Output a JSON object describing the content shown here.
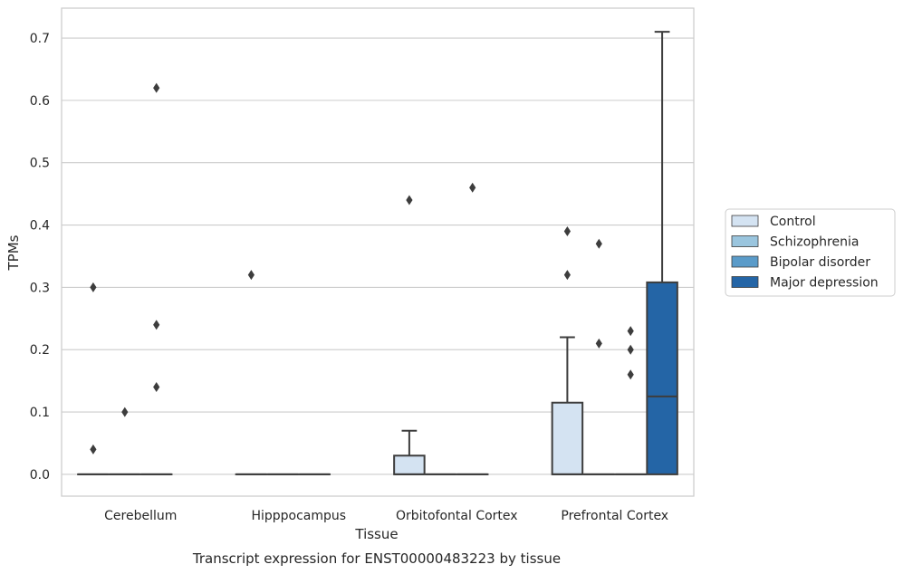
{
  "chart_data": {
    "type": "box",
    "title": "",
    "caption": "Transcript expression for ENST00000483223 by tissue",
    "xlabel": "Tissue",
    "ylabel": "TPMs",
    "ylim": [
      -0.035,
      0.748
    ],
    "yticks": [
      0.0,
      0.1,
      0.2,
      0.3,
      0.4,
      0.5,
      0.6,
      0.7
    ],
    "ytick_labels": [
      "0.0",
      "0.1",
      "0.2",
      "0.3",
      "0.4",
      "0.5",
      "0.6",
      "0.7"
    ],
    "grid": true,
    "legend_position": "right",
    "categories": [
      "Cerebellum",
      "Hipppocampus",
      "Orbitofontal Cortex",
      "Prefrontal Cortex"
    ],
    "series": [
      {
        "name": "Control",
        "color": "#d4e3f2",
        "boxes": [
          {
            "q1": 0,
            "median": 0,
            "q3": 0,
            "whislo": 0,
            "whishi": 0,
            "fliers": [
              0.3,
              0.04
            ]
          },
          {
            "q1": 0,
            "median": 0,
            "q3": 0,
            "whislo": 0,
            "whishi": 0,
            "fliers": [
              0.32
            ]
          },
          {
            "q1": 0,
            "median": 0,
            "q3": 0.03,
            "whislo": 0,
            "whishi": 0.07,
            "fliers": [
              0.44
            ]
          },
          {
            "q1": 0,
            "median": 0,
            "q3": 0.115,
            "whislo": 0,
            "whishi": 0.22,
            "fliers": [
              0.39,
              0.32
            ]
          }
        ]
      },
      {
        "name": "Schizophrenia",
        "color": "#9ac5de",
        "boxes": [
          {
            "q1": 0,
            "median": 0,
            "q3": 0,
            "whislo": 0,
            "whishi": 0,
            "fliers": [
              0.1
            ]
          },
          {
            "q1": 0,
            "median": 0,
            "q3": 0,
            "whislo": 0,
            "whishi": 0,
            "fliers": []
          },
          {
            "q1": 0,
            "median": 0,
            "q3": 0,
            "whislo": 0,
            "whishi": 0,
            "fliers": []
          },
          {
            "q1": 0,
            "median": 0,
            "q3": 0,
            "whislo": 0,
            "whishi": 0,
            "fliers": [
              0.37,
              0.21
            ]
          }
        ]
      },
      {
        "name": "Bipolar disorder",
        "color": "#5a9bc9",
        "boxes": [
          {
            "q1": 0,
            "median": 0,
            "q3": 0,
            "whislo": 0,
            "whishi": 0,
            "fliers": [
              0.62,
              0.24,
              0.14
            ]
          },
          {
            "q1": 0,
            "median": 0,
            "q3": 0,
            "whislo": 0,
            "whishi": 0,
            "fliers": []
          },
          {
            "q1": 0,
            "median": 0,
            "q3": 0,
            "whislo": 0,
            "whishi": 0,
            "fliers": [
              0.46
            ]
          },
          {
            "q1": 0,
            "median": 0,
            "q3": 0,
            "whislo": 0,
            "whishi": 0,
            "fliers": [
              0.23,
              0.2,
              0.16
            ]
          }
        ]
      },
      {
        "name": "Major depression",
        "color": "#2465a6",
        "boxes": [
          null,
          null,
          null,
          {
            "q1": 0,
            "median": 0.125,
            "q3": 0.308,
            "whislo": 0,
            "whishi": 0.71,
            "fliers": []
          }
        ]
      }
    ]
  }
}
